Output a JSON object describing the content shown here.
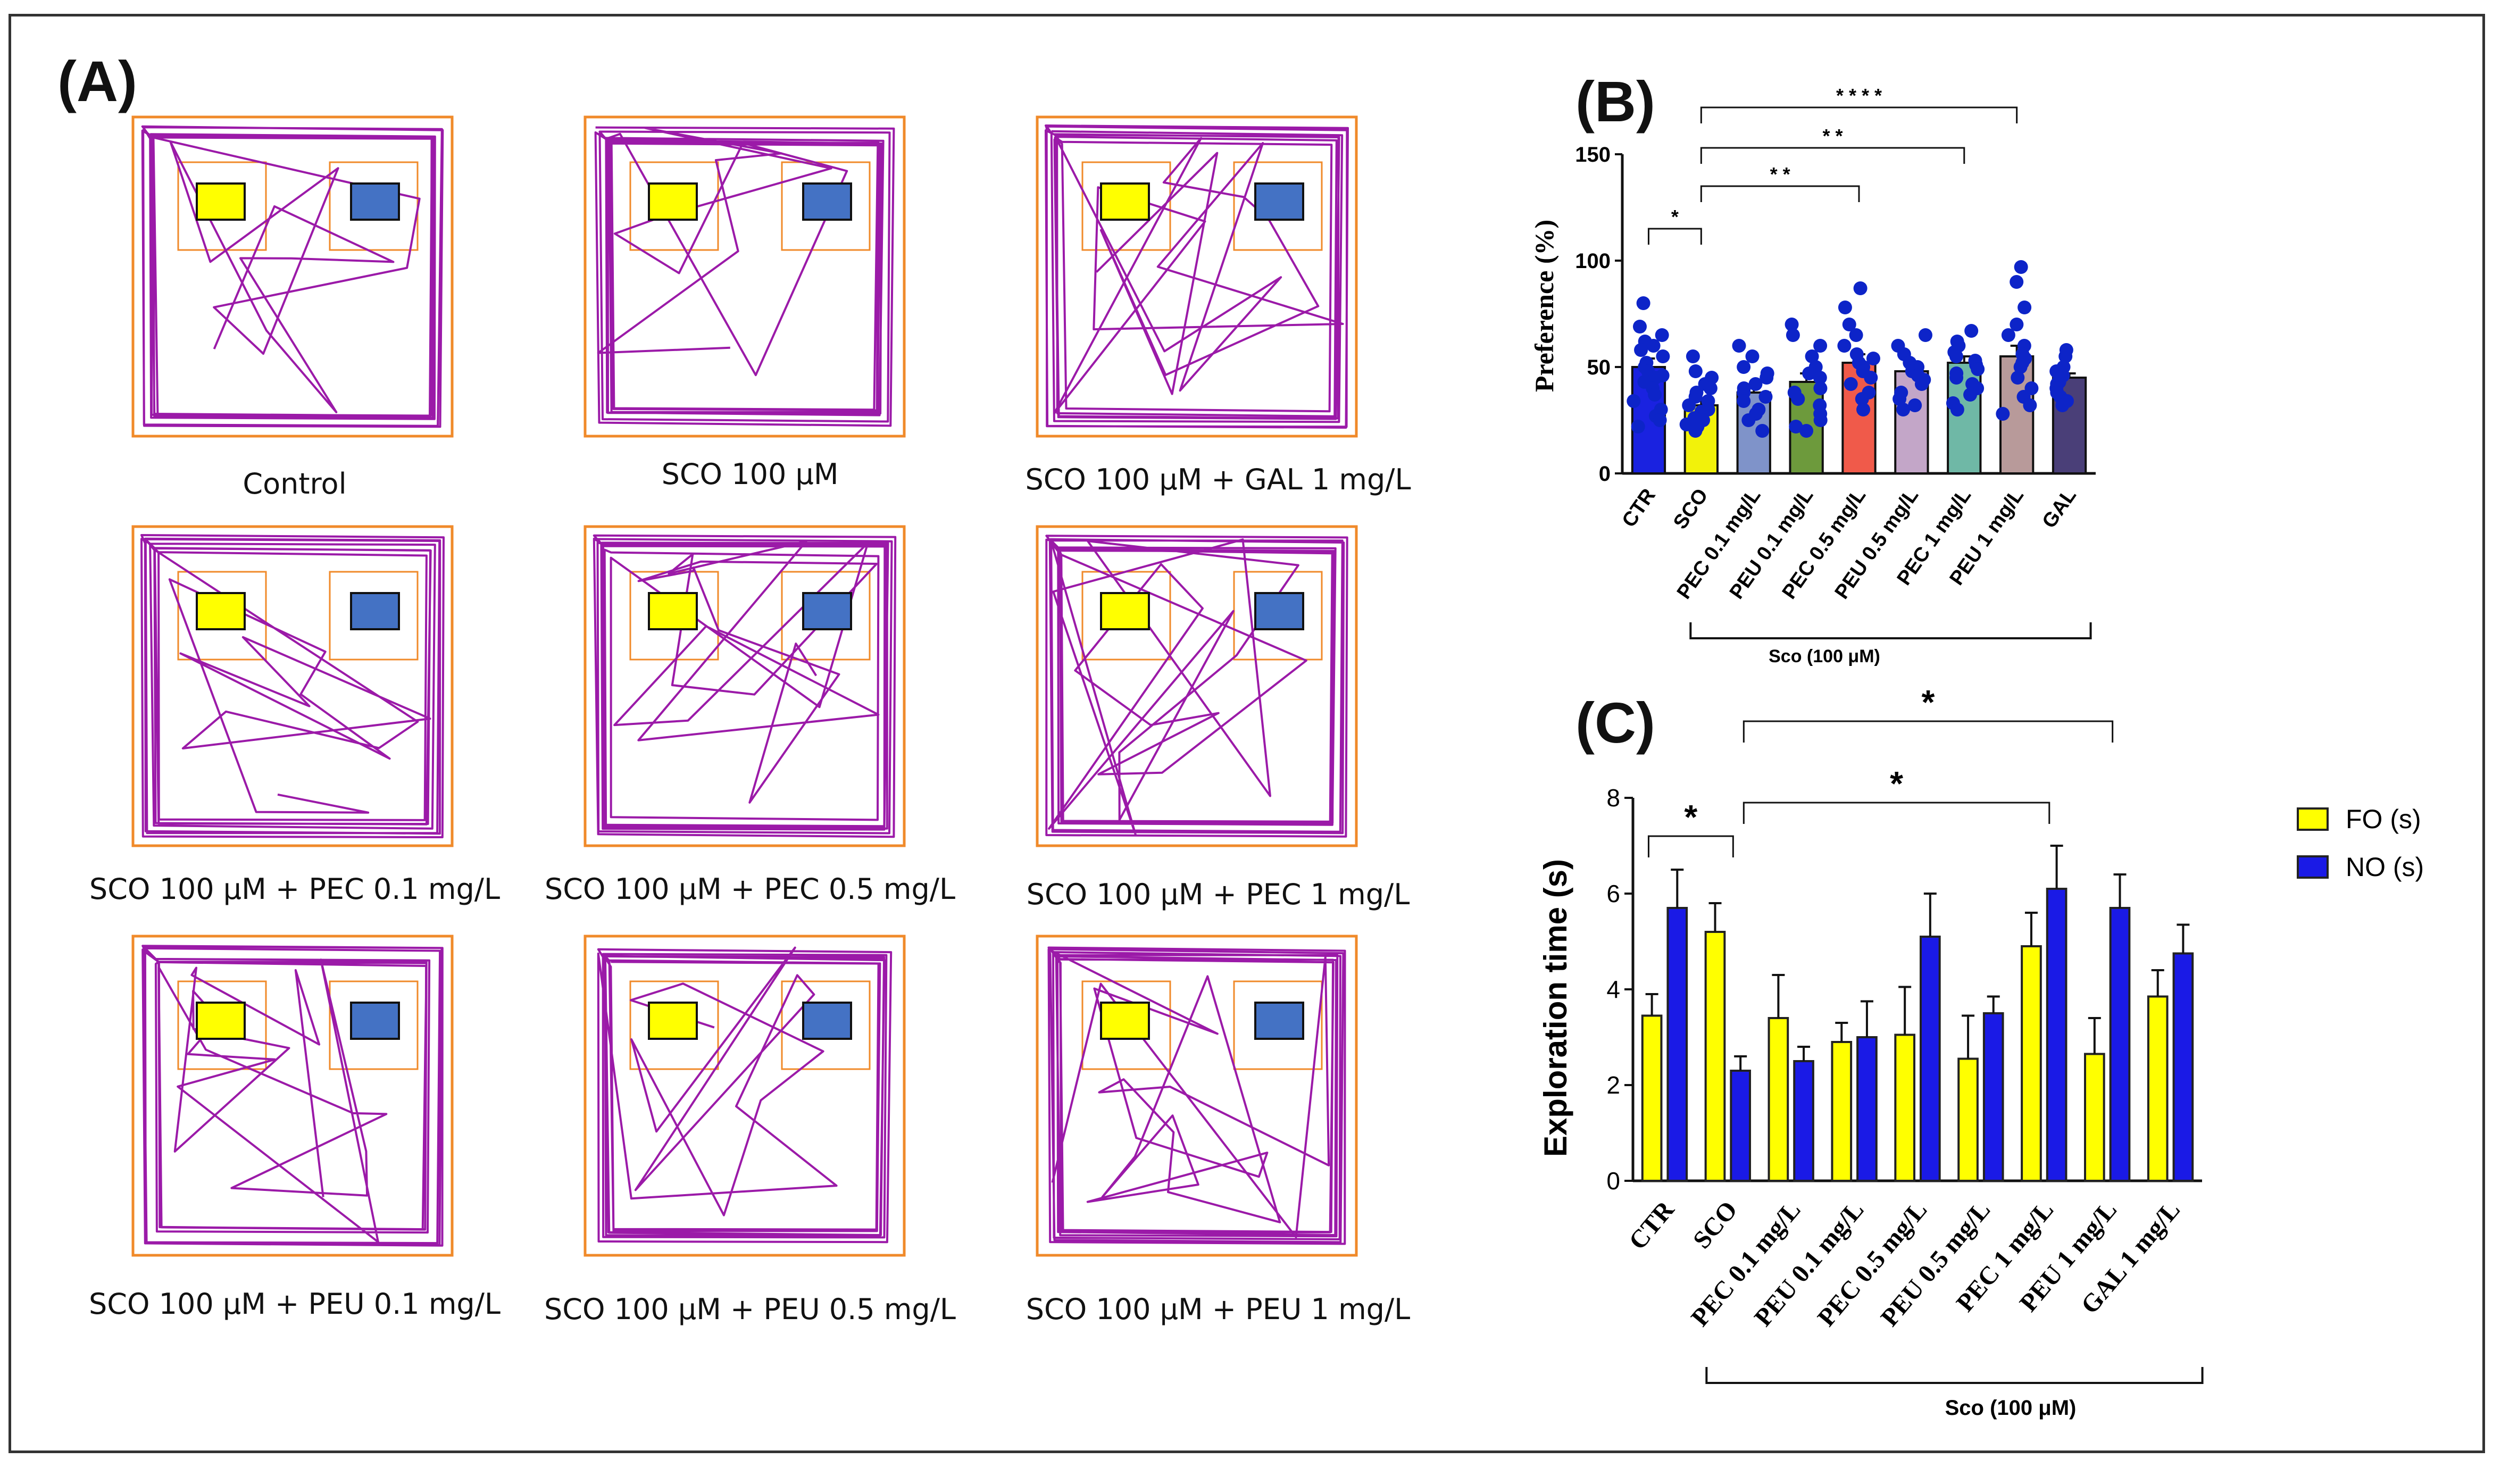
{
  "panel_labels": {
    "a": "(A)",
    "b": "(B)",
    "c": "(C)"
  },
  "colors": {
    "track": "#9b1aa8",
    "arena": "#f08a2a",
    "familiar": "#ffff00",
    "novel": "#4472c4",
    "dots": "#0d24c8"
  },
  "track_panels": [
    {
      "caption": "Control"
    },
    {
      "caption": "SCO 100 μM"
    },
    {
      "caption": "SCO 100 μM + GAL 1 mg/L"
    },
    {
      "caption": "SCO 100 μM + PEC 0.1 mg/L"
    },
    {
      "caption": "SCO 100 μM + PEC 0.5 mg/L"
    },
    {
      "caption": "SCO 100 μM + PEC 1 mg/L"
    },
    {
      "caption": "SCO 100 μM + PEU 0.1 mg/L"
    },
    {
      "caption": "SCO 100 μM + PEU 0.5 mg/L"
    },
    {
      "caption": "SCO 100 μM + PEU 1 mg/L"
    }
  ],
  "chart_data": [
    {
      "type": "bar",
      "title": "",
      "ylabel": "Preference (%)",
      "xlabel": "",
      "ylim": [
        0,
        150
      ],
      "yticks": [
        "0",
        "50",
        "100",
        "150"
      ],
      "categories": [
        "CTR",
        "SCO",
        "PEC 0.1 mg/L",
        "PEU 0.1 mg/L",
        "PEC 0.5 mg/L",
        "PEU 0.5 mg/L",
        "PEC 1 mg/L",
        "PEU 1 mg/L",
        "GAL"
      ],
      "values": [
        50,
        32,
        38,
        43,
        52,
        48,
        52,
        55,
        45
      ],
      "bar_colors": [
        "#1a22e0",
        "#f2f20a",
        "#7f93c9",
        "#6d9a3c",
        "#f05a4a",
        "#c3a6c8",
        "#6fb8a6",
        "#b89a9a",
        "#4a3f78"
      ],
      "errors": [
        4,
        3,
        3,
        4,
        4,
        3,
        3,
        5,
        2
      ],
      "points": [
        [
          80,
          69,
          65,
          62,
          60,
          58,
          55,
          52,
          50,
          48,
          46,
          45,
          43,
          40,
          37,
          34,
          30,
          27,
          25,
          22
        ],
        [
          55,
          48,
          45,
          42,
          40,
          38,
          36,
          34,
          32,
          30,
          29,
          28,
          26,
          25,
          23,
          22,
          20
        ],
        [
          60,
          55,
          50,
          47,
          45,
          42,
          40,
          38,
          36,
          34,
          30,
          28,
          25,
          20
        ],
        [
          70,
          65,
          60,
          55,
          50,
          47,
          45,
          40,
          38,
          35,
          32,
          28,
          25,
          22,
          20
        ],
        [
          87,
          78,
          70,
          65,
          60,
          56,
          54,
          52,
          50,
          48,
          45,
          42,
          38,
          35,
          30
        ],
        [
          65,
          60,
          56,
          52,
          50,
          48,
          46,
          44,
          42,
          38,
          35,
          32,
          30
        ],
        [
          67,
          62,
          60,
          57,
          55,
          53,
          51,
          49,
          47,
          45,
          42,
          40,
          37,
          33,
          30
        ],
        [
          97,
          90,
          78,
          70,
          65,
          60,
          56,
          54,
          52,
          50,
          45,
          40,
          36,
          32,
          28
        ],
        [
          58,
          55,
          50,
          48,
          46,
          45,
          43,
          42,
          40,
          38,
          36,
          34,
          32
        ]
      ],
      "significance": [
        {
          "from": "CTR",
          "to": "SCO",
          "label": "*"
        },
        {
          "from": "SCO",
          "to": "PEC 0.5 mg/L",
          "label": "* *"
        },
        {
          "from": "SCO",
          "to": "PEC 1 mg/L",
          "label": "* *"
        },
        {
          "from": "SCO",
          "to": "PEU 1 mg/L",
          "label": "* * * *"
        }
      ],
      "group_bracket": {
        "label": "Sco (100 μM)",
        "from": "SCO",
        "to": "GAL"
      }
    },
    {
      "type": "bar",
      "title": "",
      "ylabel": "Exploration  time (s)",
      "xlabel": "",
      "ylim": [
        0,
        8
      ],
      "yticks": [
        "0",
        "2",
        "4",
        "6",
        "8"
      ],
      "categories": [
        "CTR",
        "SCO",
        "PEC 0.1 mg/L",
        "PEU 0.1 mg/L",
        "PEC 0.5 mg/L",
        "PEU 0.5 mg/L",
        "PEC 1 mg/L",
        "PEU 1 mg/L",
        "GAL 1 mg/L"
      ],
      "series": [
        {
          "name": "FO (s)",
          "color": "#ffff00",
          "values": [
            3.45,
            5.2,
            3.4,
            2.9,
            3.05,
            2.55,
            4.9,
            2.65,
            3.85
          ],
          "errors": [
            0.45,
            0.6,
            0.9,
            0.4,
            1.0,
            0.9,
            0.7,
            0.75,
            0.55
          ]
        },
        {
          "name": "NO (s)",
          "color": "#1a1ae6",
          "values": [
            5.7,
            2.3,
            2.5,
            3.0,
            5.1,
            3.5,
            6.1,
            5.7,
            4.75
          ],
          "errors": [
            0.8,
            0.3,
            0.3,
            0.75,
            0.9,
            0.35,
            0.9,
            0.7,
            0.6
          ]
        }
      ],
      "significance": [
        {
          "from": "CTR",
          "to": "SCO",
          "label": "*"
        },
        {
          "from": "SCO",
          "to": "PEC 1 mg/L",
          "label": "*"
        },
        {
          "from": "SCO",
          "to": "PEU 1 mg/L",
          "label": "*"
        }
      ],
      "group_bracket": {
        "label": "Sco (100 μM)",
        "from": "SCO",
        "to": "GAL 1 mg/L"
      }
    }
  ]
}
